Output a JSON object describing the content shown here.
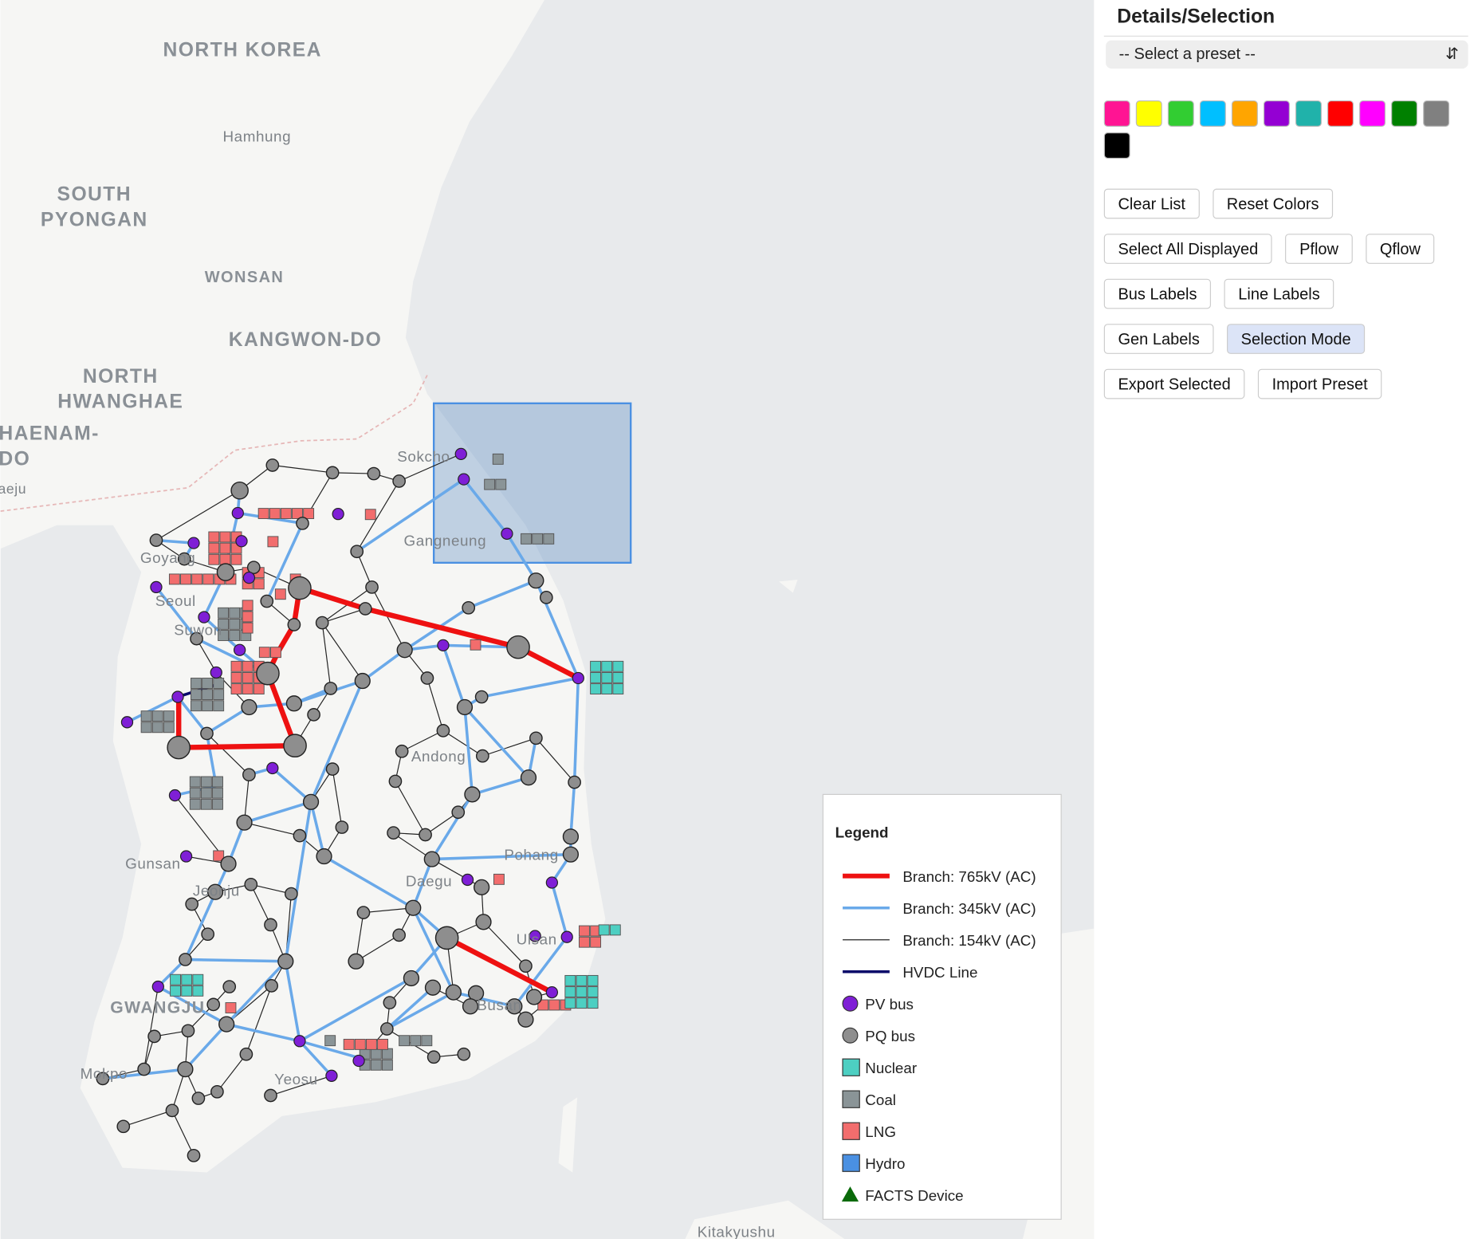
{
  "map": {
    "place_labels": [
      "NORTH KOREA",
      "Hamhung",
      "SOUTH",
      "PYONGAN",
      "WONSAN",
      "KANGWON-DO",
      "NORTH",
      "HWANGHAE",
      "HAENAM-",
      "DO",
      "Haeju",
      "Sokcho",
      "Gangneung",
      "Goyang",
      "Seoul",
      "Suwon",
      "Andong",
      "Pohang",
      "Daegu",
      "Ulsan",
      "Busan",
      "Gunsan",
      "Jeonju",
      "GWANGJU",
      "Mokpo",
      "Yeosu",
      "Kitakyushu"
    ]
  },
  "panel": {
    "title": "Details/Selection",
    "preset_select": "-- Select a preset --",
    "swatches": [
      "#ff1493",
      "#ffff00",
      "#32cd32",
      "#00bfff",
      "#ffa500",
      "#9400d3",
      "#20b2aa",
      "#ff0000",
      "#ff00ff",
      "#008000",
      "#808080",
      "#000000"
    ],
    "button_rows": [
      [
        "Clear List",
        "Reset Colors"
      ],
      [
        "Select All Displayed",
        "Pflow",
        "Qflow"
      ],
      [
        "Bus Labels",
        "Line Labels"
      ],
      [
        "Gen Labels",
        "Selection Mode"
      ],
      [
        "Export Selected",
        "Import Preset"
      ]
    ]
  },
  "legend": {
    "title": "Legend",
    "items": [
      "Branch: 765kV (AC)",
      "Branch: 345kV (AC)",
      "Branch: 154kV (AC)",
      "HVDC Line",
      "PV bus",
      "PQ bus",
      "Nuclear",
      "Coal",
      "LNG",
      "Hydro",
      "FACTS Device"
    ]
  }
}
